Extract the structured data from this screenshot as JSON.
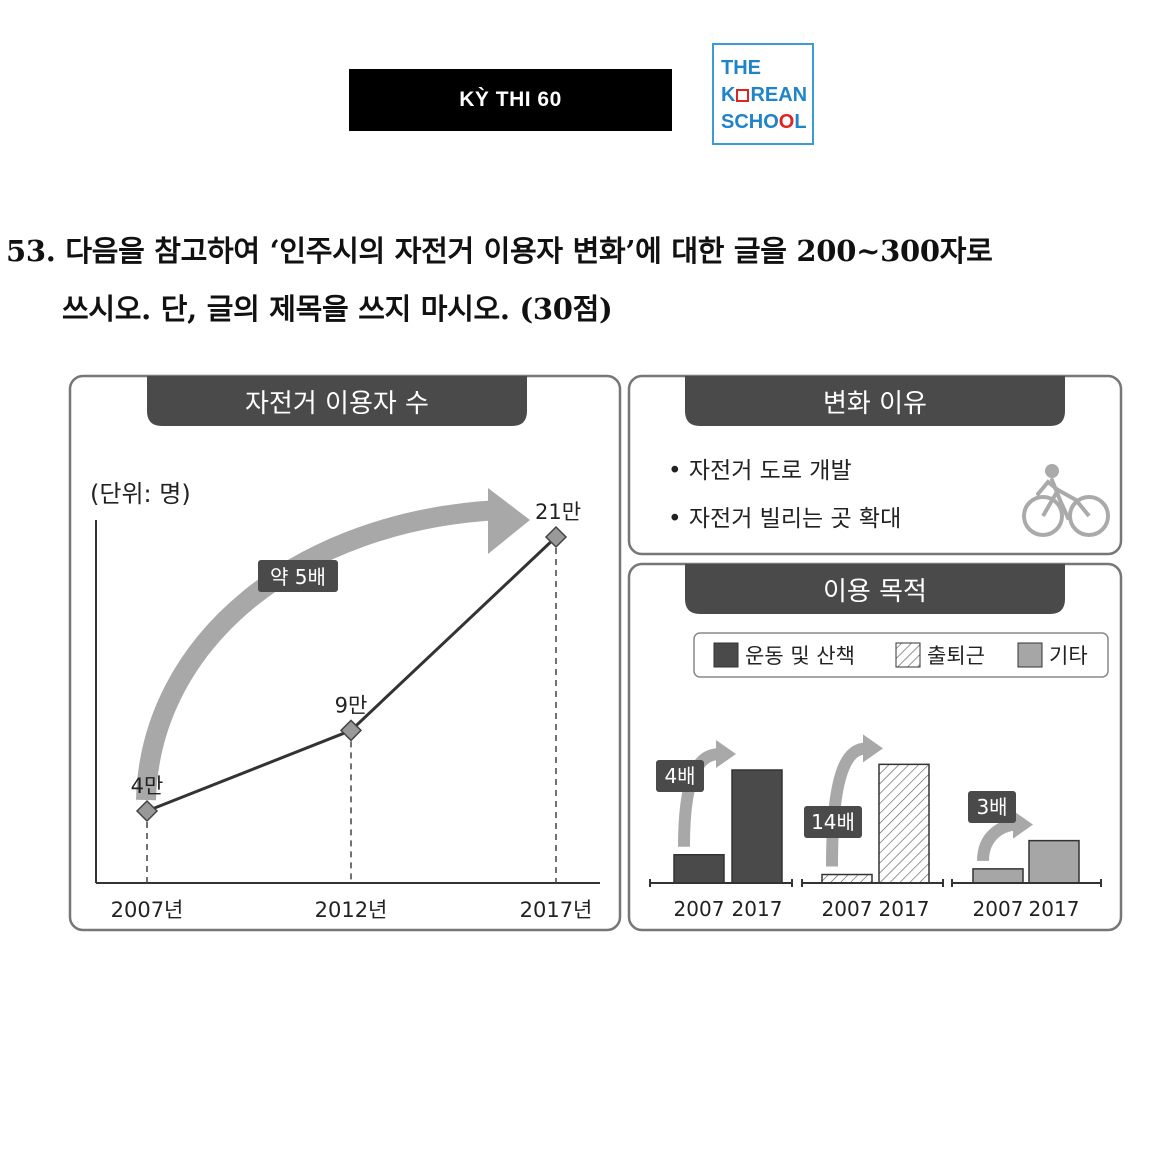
{
  "header": {
    "exam_label": "KỲ THI 60",
    "logo": {
      "line1": "THE",
      "line2_before": "K",
      "line2_after": "REAN",
      "line3_before": "SCHO",
      "line3_red": "O",
      "line3_after": "L",
      "brand_blue": "#1f84c8",
      "brand_red": "#e0241f"
    }
  },
  "question": {
    "line1": "53. 다음을 참고하여 ‘인주시의 자전거 이용자 변화’에 대한 글을 200~300자로",
    "line2": "쓰시오. 단, 글의 제목을 쓰지 마시오. (30점)"
  },
  "panels": {
    "users": {
      "title": "자전거 이용자 수",
      "unit": "(단위: 명)",
      "growth_label": "약 5배"
    },
    "reasons": {
      "title": "변화 이유",
      "items": [
        "• 자전거 도로 개발",
        "• 자전거 빌리는 곳 확대"
      ],
      "icon": "bicycle-icon"
    },
    "purpose": {
      "title": "이용 목적",
      "legend": [
        "운동 및 산책",
        "출퇴근",
        "기타"
      ]
    }
  },
  "chart_data": [
    {
      "type": "line",
      "x": [
        "2007년",
        "2012년",
        "2017년"
      ],
      "values": [
        4,
        9,
        21
      ],
      "point_labels": [
        "4만",
        "9만",
        "21만"
      ],
      "ylabel": "(단위: 명)",
      "annotation": "약 5배",
      "marker": "diamond",
      "grid": false
    },
    {
      "type": "bar",
      "groups": [
        {
          "category": "운동 및 산책",
          "x": [
            "2007",
            "2017"
          ],
          "values": [
            1,
            4
          ],
          "multiplier_label": "4배",
          "fill": "#4a4a4a"
        },
        {
          "category": "출퇴근",
          "x": [
            "2007",
            "2017"
          ],
          "values": [
            0.3,
            4.2
          ],
          "multiplier_label": "14배",
          "fill": "hatch"
        },
        {
          "category": "기타",
          "x": [
            "2007",
            "2017"
          ],
          "values": [
            0.5,
            1.5
          ],
          "multiplier_label": "3배",
          "fill": "#a6a6a6"
        }
      ],
      "legend": [
        "운동 및 산책",
        "출퇴근",
        "기타"
      ],
      "legend_position": "top",
      "grid": false
    }
  ]
}
